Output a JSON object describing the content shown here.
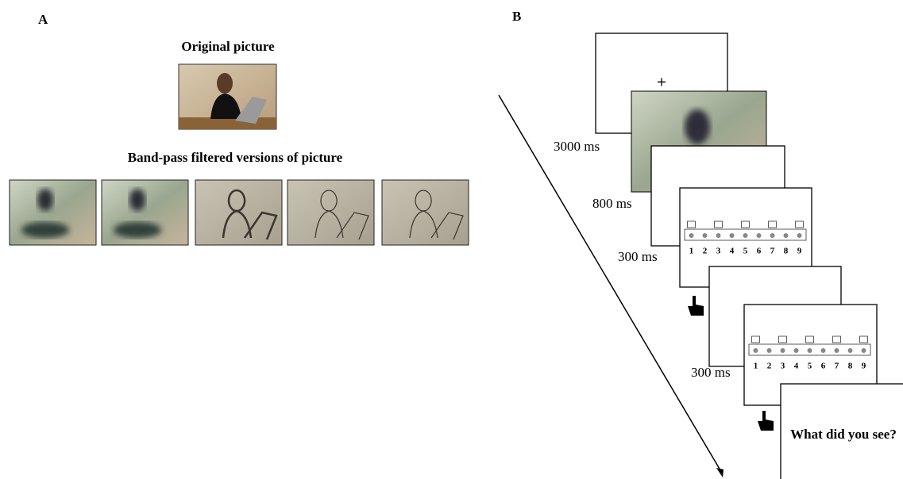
{
  "panel_a": {
    "label": "A",
    "original_title": "Original picture",
    "filtered_title": "Band-pass filtered versions of picture"
  },
  "panel_b": {
    "label": "B",
    "fixation": "+",
    "durations": [
      "3000 ms",
      "800 ms",
      "300 ms",
      "300 ms"
    ],
    "scale_labels": [
      "1",
      "2",
      "3",
      "4",
      "5",
      "6",
      "7",
      "8",
      "9"
    ],
    "question": "What did you see?"
  }
}
